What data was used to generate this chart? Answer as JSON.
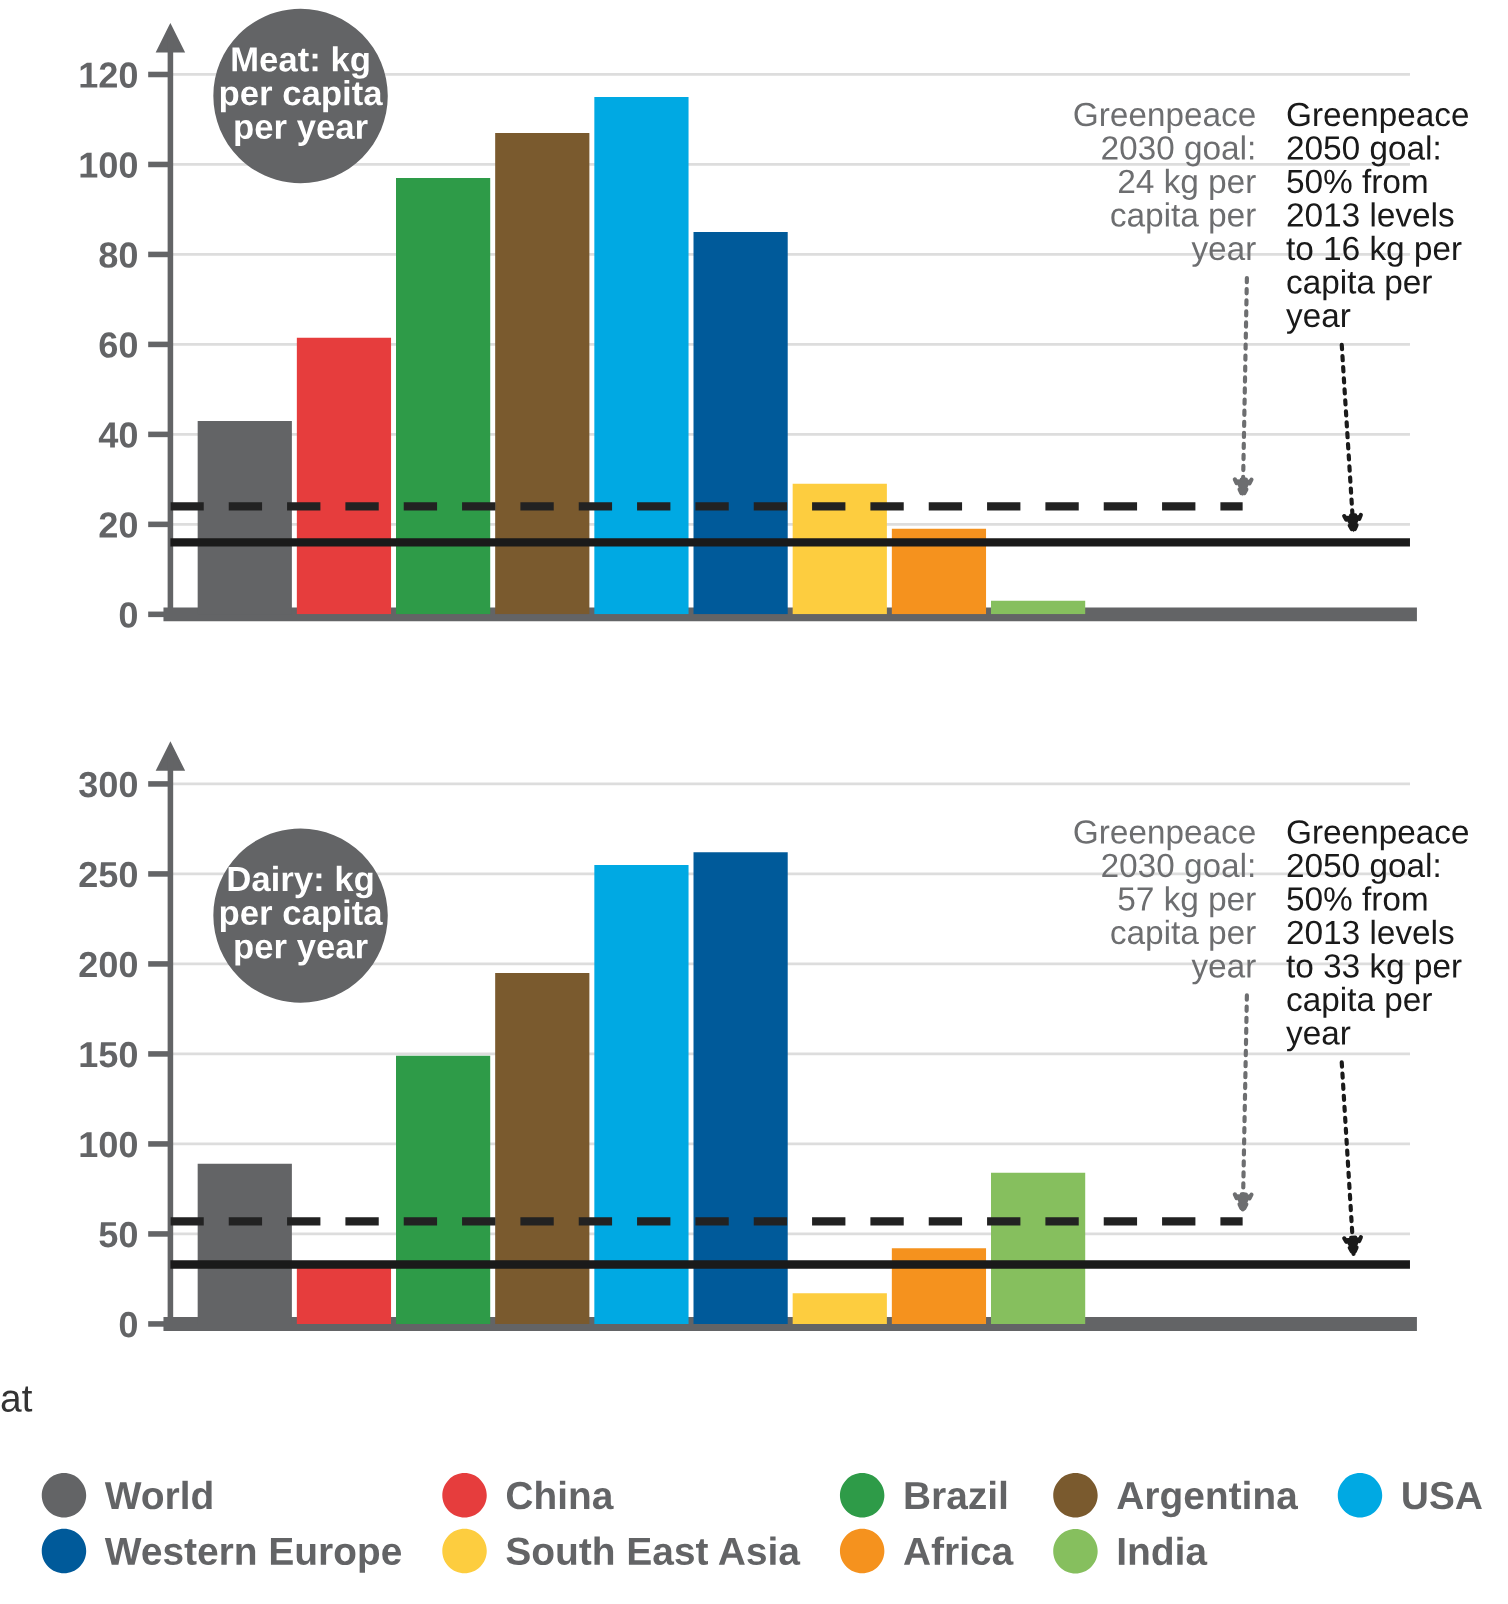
{
  "chart_data": [
    {
      "type": "bar",
      "title": "Meat: kg\nper capita\nper year",
      "categories": [
        null
      ],
      "series": [
        {
          "color": "#636466",
          "values": [
            43
          ]
        },
        {
          "color": "#e63d3d",
          "values": [
            61.5
          ]
        },
        {
          "color": "#2e9b48",
          "values": [
            97
          ]
        },
        {
          "color": "#7a5a2e",
          "values": [
            107
          ]
        },
        {
          "color": "#00a9e3",
          "values": [
            115
          ]
        },
        {
          "color": "#005a9a",
          "values": [
            85
          ]
        },
        {
          "color": "#fdcd3f",
          "values": [
            29
          ]
        },
        {
          "color": "#f5921e",
          "values": [
            19
          ]
        },
        {
          "color": "#86bf5e",
          "values": [
            3
          ]
        }
      ],
      "ylim": [
        0,
        128
      ],
      "yticks": [
        0,
        20,
        40,
        60,
        80,
        100,
        120
      ],
      "grid": "y",
      "tick_labels": "y",
      "ref_lines": [
        {
          "axis": "y",
          "value": 24,
          "label": "Greenpeace\n2030 goal:\n24 kg per\ncapita per\nyear",
          "color": "#222222",
          "line_style": "dashed"
        },
        {
          "axis": "y",
          "value": 16,
          "label": "Greenpeace\n2050 goal:\n50% from\n2013 levels\nto 16 kg per\ncapita per\nyear",
          "color": "#1a1a1a",
          "line_style": "solid"
        }
      ]
    },
    {
      "type": "bar",
      "title": "Dairy: kg\nper capita\nper year",
      "categories": [
        null
      ],
      "series": [
        {
          "name": "World",
          "color": "#636466",
          "values": [
            89
          ]
        },
        {
          "name": "China",
          "color": "#e63d3d",
          "values": [
            32
          ]
        },
        {
          "name": "Brazil",
          "color": "#2e9b48",
          "values": [
            149
          ]
        },
        {
          "name": "Argentina",
          "color": "#7a5a2e",
          "values": [
            195
          ]
        },
        {
          "name": "USA",
          "color": "#00a9e3",
          "values": [
            255
          ]
        },
        {
          "name": "Western Europe",
          "color": "#005a9a",
          "values": [
            262
          ]
        },
        {
          "name": "South East Asia",
          "color": "#fdcd3f",
          "values": [
            17
          ]
        },
        {
          "name": "Africa",
          "color": "#f5921e",
          "values": [
            42
          ]
        },
        {
          "name": "India",
          "color": "#86bf5e",
          "values": [
            84
          ]
        }
      ],
      "ylim": [
        0,
        315
      ],
      "yticks": [
        0,
        50,
        100,
        150,
        200,
        250,
        300
      ],
      "grid": "y",
      "tick_labels": "y",
      "legend": "bottom",
      "ref_lines": [
        {
          "axis": "y",
          "value": 57,
          "label": "Greenpeace\n2030 goal:\n57 kg per\ncapita per\nyear",
          "color": "#222222",
          "line_style": "dashed"
        },
        {
          "axis": "y",
          "value": 33,
          "label": "Greenpeace\n2050 goal:\n50% from\n2013 levels\nto 33 kg per\ncapita per\nyear",
          "color": "#1a1a1a",
          "line_style": "solid"
        }
      ],
      "annotations": [
        "at"
      ]
    }
  ]
}
